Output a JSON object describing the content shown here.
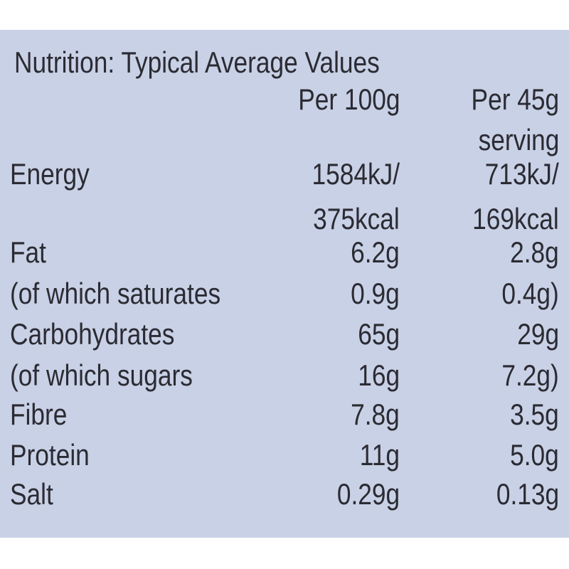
{
  "title": "Nutrition: Typical Average Values",
  "headers": [
    [
      "Per 100g"
    ],
    [
      "Per 45g",
      "serving"
    ]
  ],
  "rows": [
    {
      "label": "Energy",
      "per100": [
        "1584kJ/",
        "375kcal"
      ],
      "perServing": [
        "713kJ/",
        "169kcal"
      ]
    },
    {
      "label": "Fat",
      "per100": [
        "6.2g"
      ],
      "perServing": [
        "2.8g"
      ]
    },
    {
      "label": "(of which saturates",
      "per100": [
        "0.9g"
      ],
      "perServing": [
        "0.4g)"
      ]
    },
    {
      "label": "Carbohydrates",
      "per100": [
        "65g"
      ],
      "perServing": [
        "29g"
      ]
    },
    {
      "label": "(of which sugars",
      "per100": [
        "16g"
      ],
      "perServing": [
        "7.2g)"
      ]
    },
    {
      "label": "Fibre",
      "per100": [
        "7.8g"
      ],
      "perServing": [
        "3.5g"
      ]
    },
    {
      "label": "Protein",
      "per100": [
        "11g"
      ],
      "perServing": [
        "5.0g"
      ]
    },
    {
      "label": "Salt",
      "per100": [
        "0.29g"
      ],
      "perServing": [
        "0.13g"
      ]
    }
  ]
}
